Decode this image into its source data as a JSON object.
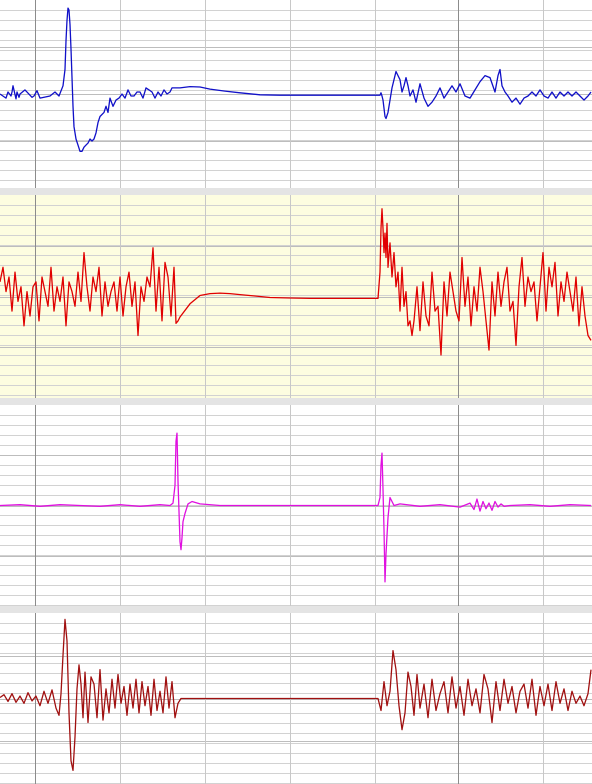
{
  "chart_data": {
    "type": "line",
    "title": "",
    "grid": true,
    "colors": {
      "background": "#ffffff",
      "panel_separator": "#e4e4e4",
      "highlight_panel": "#fdfde0",
      "grid_minor": "#d2d2d2",
      "grid_major": "#8c8c8c",
      "channel_1": "#1010c8",
      "channel_2": "#e00000",
      "channel_3": "#e010e0",
      "channel_4": "#a01010"
    },
    "panels": [
      {
        "highlighted": false,
        "color_key": "channel_1",
        "x": [
          0,
          6,
          8,
          11,
          12,
          13,
          16,
          17,
          19,
          20,
          25,
          32,
          34,
          37,
          40,
          50,
          55,
          59,
          63,
          65,
          66,
          67,
          68,
          69,
          70,
          71,
          72,
          73,
          74,
          76,
          78,
          80,
          82,
          84,
          86,
          88,
          90,
          92,
          94,
          96,
          98,
          100,
          104,
          106,
          108,
          110,
          113,
          116,
          119,
          122,
          125,
          128,
          131,
          134,
          137,
          140,
          143,
          146,
          149,
          152,
          155,
          158,
          161,
          164,
          167,
          170,
          172,
          175,
          180,
          190,
          200,
          210,
          225,
          240,
          260,
          280,
          300,
          330,
          360,
          380,
          381,
          382,
          383,
          384,
          385,
          386,
          388,
          390,
          392,
          394,
          396,
          398,
          400,
          402,
          404,
          406,
          408,
          410,
          413,
          416,
          420,
          424,
          428,
          432,
          436,
          440,
          444,
          448,
          452,
          456,
          460,
          465,
          470,
          475,
          480,
          485,
          490,
          495,
          498,
          500,
          502,
          505,
          508,
          512,
          516,
          520,
          524,
          528,
          532,
          536,
          540,
          544,
          548,
          552,
          556,
          560,
          564,
          568,
          572,
          576,
          580,
          584,
          588,
          591
        ],
        "y": [
          0,
          -0.1,
          0.05,
          -0.05,
          0.05,
          0.2,
          -0.12,
          0.05,
          -0.08,
          0,
          0.1,
          -0.08,
          -0.05,
          0.08,
          -0.1,
          -0.05,
          0.05,
          -0.05,
          0.2,
          0.6,
          1.3,
          1.8,
          2.1,
          2.05,
          1.7,
          1.1,
          0.4,
          -0.3,
          -0.8,
          -1.1,
          -1.25,
          -1.4,
          -1.4,
          -1.3,
          -1.25,
          -1.2,
          -1.1,
          -1.15,
          -1.1,
          -0.95,
          -0.7,
          -0.55,
          -0.45,
          -0.3,
          -0.45,
          -0.1,
          -0.3,
          -0.15,
          -0.1,
          0,
          -0.1,
          0.1,
          -0.05,
          -0.05,
          0.05,
          0.05,
          -0.1,
          0.15,
          0.1,
          0.05,
          -0.1,
          0.05,
          -0.05,
          0.1,
          0,
          0.05,
          0.15,
          0.15,
          0.15,
          0.18,
          0.17,
          0.12,
          0.07,
          0.03,
          -0.02,
          -0.03,
          -0.03,
          -0.03,
          -0.03,
          -0.03,
          0.03,
          -0.05,
          -0.15,
          -0.35,
          -0.55,
          -0.6,
          -0.45,
          -0.15,
          0.15,
          0.35,
          0.55,
          0.45,
          0.35,
          0.05,
          0.2,
          0.4,
          0.2,
          -0.05,
          0.1,
          -0.2,
          0.25,
          -0.1,
          -0.3,
          -0.2,
          -0.05,
          0.15,
          -0.1,
          0.05,
          0.2,
          0.05,
          0.25,
          -0.05,
          -0.1,
          0.1,
          0.3,
          0.45,
          0.4,
          0.05,
          0.45,
          0.6,
          0.2,
          0.05,
          -0.05,
          -0.2,
          -0.1,
          -0.25,
          -0.1,
          -0.05,
          0.05,
          -0.05,
          0.1,
          -0.05,
          -0.1,
          0.05,
          -0.1,
          0.05,
          -0.05,
          0.05,
          -0.05,
          0.05,
          -0.05,
          -0.15,
          -0.05,
          0.05
        ],
        "ylim": [
          -2.2,
          2.2
        ]
      },
      {
        "highlighted": true,
        "color_key": "channel_2",
        "x": [
          0,
          3,
          6,
          9,
          12,
          15,
          18,
          21,
          24,
          27,
          30,
          33,
          36,
          39,
          42,
          45,
          48,
          51,
          54,
          57,
          60,
          63,
          66,
          69,
          72,
          75,
          78,
          81,
          84,
          87,
          90,
          93,
          96,
          99,
          102,
          105,
          108,
          111,
          114,
          117,
          120,
          123,
          126,
          129,
          132,
          135,
          138,
          141,
          144,
          147,
          150,
          153,
          156,
          159,
          162,
          165,
          168,
          171,
          174,
          176,
          178,
          180,
          190,
          200,
          210,
          220,
          230,
          240,
          255,
          270,
          290,
          310,
          330,
          350,
          370,
          378,
          380,
          381,
          382,
          383,
          384,
          385,
          386,
          387,
          388,
          390,
          392,
          394,
          396,
          398,
          400,
          402,
          404,
          406,
          408,
          410,
          412,
          414,
          417,
          420,
          423,
          426,
          429,
          432,
          435,
          438,
          441,
          444,
          447,
          450,
          453,
          456,
          459,
          462,
          465,
          468,
          471,
          474,
          477,
          480,
          483,
          486,
          489,
          492,
          495,
          498,
          501,
          504,
          507,
          510,
          513,
          516,
          519,
          522,
          525,
          528,
          531,
          534,
          537,
          540,
          543,
          546,
          549,
          552,
          555,
          558,
          561,
          564,
          567,
          570,
          573,
          576,
          579,
          582,
          585,
          588,
          591
        ],
        "y": [
          0.3,
          0.6,
          0.1,
          0.4,
          -0.3,
          0.5,
          -0.1,
          0.2,
          -0.6,
          0.1,
          -0.4,
          0.2,
          0.3,
          -0.5,
          0.4,
          0.1,
          -0.2,
          0.6,
          -0.3,
          0.2,
          -0.1,
          0.4,
          -0.6,
          0.3,
          0.1,
          -0.2,
          0.5,
          -0.1,
          0.9,
          0.2,
          -0.3,
          0.4,
          0.1,
          0.6,
          -0.4,
          0.3,
          -0.2,
          0.1,
          0.3,
          -0.3,
          0.4,
          -0.4,
          0.2,
          0.5,
          -0.2,
          0.3,
          -0.8,
          0.2,
          -0.1,
          0.4,
          0.2,
          1.0,
          -0.3,
          0.6,
          -0.5,
          0.7,
          0.4,
          -0.4,
          0.6,
          -0.55,
          -0.5,
          -0.42,
          -0.15,
          0.02,
          0.06,
          0.07,
          0.06,
          0.04,
          0.01,
          -0.02,
          -0.03,
          -0.04,
          -0.04,
          -0.04,
          -0.04,
          -0.04,
          0.5,
          1.4,
          1.8,
          1.4,
          0.9,
          1.3,
          0.8,
          1.5,
          0.6,
          1.1,
          0.4,
          0.9,
          0.2,
          0.5,
          -0.3,
          0.6,
          -0.2,
          0.1,
          -0.6,
          -0.5,
          -0.8,
          -0.5,
          0.2,
          -0.7,
          0.3,
          -0.4,
          -0.6,
          0.5,
          -0.3,
          -0.2,
          -1.2,
          0.3,
          -0.4,
          0.5,
          0.1,
          -0.3,
          -0.5,
          0.8,
          -0.2,
          0.4,
          -0.6,
          0.2,
          -0.3,
          0.6,
          0.1,
          -0.5,
          -1.1,
          0.3,
          -0.4,
          0.5,
          -0.2,
          0.3,
          0.6,
          -0.3,
          -0.1,
          -1.0,
          0.2,
          0.8,
          -0.2,
          0.4,
          0.1,
          0.3,
          -0.5,
          0.2,
          0.9,
          -0.3,
          0.6,
          0.2,
          0.7,
          -0.4,
          0.3,
          -0.1,
          0.5,
          0.1,
          -0.3,
          0.4,
          -0.6,
          0.2,
          -0.4,
          -0.8,
          -0.9
        ],
        "ylim": [
          -2.0,
          2.0
        ]
      },
      {
        "highlighted": false,
        "color_key": "channel_3",
        "x": [
          0,
          20,
          40,
          60,
          80,
          100,
          120,
          140,
          160,
          170,
          173,
          175,
          176,
          177,
          178,
          180,
          181,
          182,
          183,
          185,
          188,
          192,
          200,
          220,
          244,
          260,
          300,
          340,
          378,
          380,
          381,
          382,
          383,
          384,
          385,
          386,
          388,
          390,
          394,
          400,
          420,
          440,
          460,
          470,
          474,
          477,
          480,
          483,
          486,
          489,
          492,
          495,
          498,
          501,
          504,
          510,
          530,
          550,
          570,
          591
        ],
        "y": [
          0,
          0.01,
          -0.01,
          0.01,
          0,
          -0.01,
          0.01,
          -0.01,
          0.01,
          0,
          0.03,
          0.25,
          0.8,
          0.9,
          0.3,
          -0.45,
          -0.55,
          -0.4,
          -0.2,
          -0.1,
          0.02,
          0.05,
          0.02,
          0,
          0,
          0,
          0,
          0,
          0,
          0.1,
          0.5,
          0.65,
          0.2,
          -0.3,
          -0.95,
          -0.6,
          -0.15,
          0.1,
          0,
          0.02,
          -0.01,
          0.01,
          -0.02,
          0.03,
          -0.05,
          0.08,
          -0.07,
          0.05,
          -0.04,
          0.03,
          -0.06,
          0.05,
          -0.02,
          0.02,
          -0.01,
          0,
          0.01,
          -0.01,
          0.01,
          0
        ],
        "ylim": [
          -1.2,
          1.2
        ]
      },
      {
        "highlighted": false,
        "color_key": "channel_4",
        "x": [
          0,
          4,
          8,
          12,
          16,
          20,
          24,
          28,
          32,
          36,
          40,
          44,
          48,
          52,
          56,
          59,
          61,
          63,
          65,
          67,
          69,
          71,
          73,
          75,
          77,
          79,
          81,
          83,
          85,
          88,
          91,
          94,
          97,
          100,
          103,
          106,
          109,
          112,
          115,
          118,
          121,
          124,
          127,
          130,
          133,
          136,
          139,
          142,
          145,
          148,
          151,
          154,
          157,
          160,
          163,
          166,
          169,
          172,
          175,
          178,
          181,
          185,
          200,
          260,
          320,
          378,
          381,
          384,
          387,
          390,
          393,
          396,
          399,
          402,
          405,
          408,
          411,
          414,
          417,
          420,
          424,
          428,
          432,
          436,
          440,
          444,
          448,
          452,
          456,
          460,
          464,
          468,
          472,
          476,
          480,
          484,
          488,
          492,
          496,
          500,
          504,
          508,
          512,
          516,
          520,
          524,
          528,
          532,
          536,
          540,
          544,
          548,
          552,
          556,
          560,
          564,
          568,
          572,
          576,
          580,
          584,
          588,
          591
        ],
        "y": [
          0.02,
          0.08,
          -0.06,
          0.1,
          -0.08,
          0.05,
          -0.1,
          0.12,
          -0.05,
          0.05,
          -0.15,
          0.15,
          -0.1,
          0.18,
          -0.2,
          -0.35,
          0.1,
          0.9,
          1.65,
          1.2,
          -0.3,
          -1.3,
          -1.5,
          -0.8,
          0.2,
          0.7,
          0.3,
          -0.4,
          0.55,
          -0.5,
          0.45,
          0.3,
          -0.4,
          0.6,
          -0.45,
          0.2,
          -0.3,
          0.4,
          -0.2,
          0.5,
          -0.1,
          0.25,
          -0.35,
          0.3,
          -0.2,
          0.4,
          -0.3,
          0.35,
          -0.15,
          0.25,
          -0.35,
          0.4,
          -0.25,
          0.15,
          -0.3,
          0.45,
          -0.2,
          0.35,
          -0.4,
          -0.1,
          0,
          0,
          0,
          0,
          0,
          0,
          -0.25,
          0.35,
          -0.15,
          0.15,
          1.0,
          0.6,
          -0.15,
          -0.65,
          -0.3,
          0.55,
          0.25,
          -0.35,
          0.5,
          -0.2,
          0.3,
          -0.4,
          0.4,
          -0.25,
          0.1,
          0.35,
          -0.3,
          0.45,
          -0.2,
          0.25,
          -0.35,
          0.4,
          -0.15,
          0.2,
          -0.3,
          0.5,
          0.2,
          -0.5,
          0.35,
          -0.25,
          0.4,
          -0.1,
          0.25,
          -0.3,
          0.15,
          0.3,
          -0.2,
          0.4,
          -0.35,
          0.25,
          -0.15,
          0.3,
          -0.25,
          0.35,
          -0.1,
          0.2,
          -0.25,
          0.15,
          -0.1,
          0.05,
          -0.15,
          0.1,
          0.6
        ],
        "ylim": [
          -1.7,
          1.7
        ]
      }
    ]
  }
}
